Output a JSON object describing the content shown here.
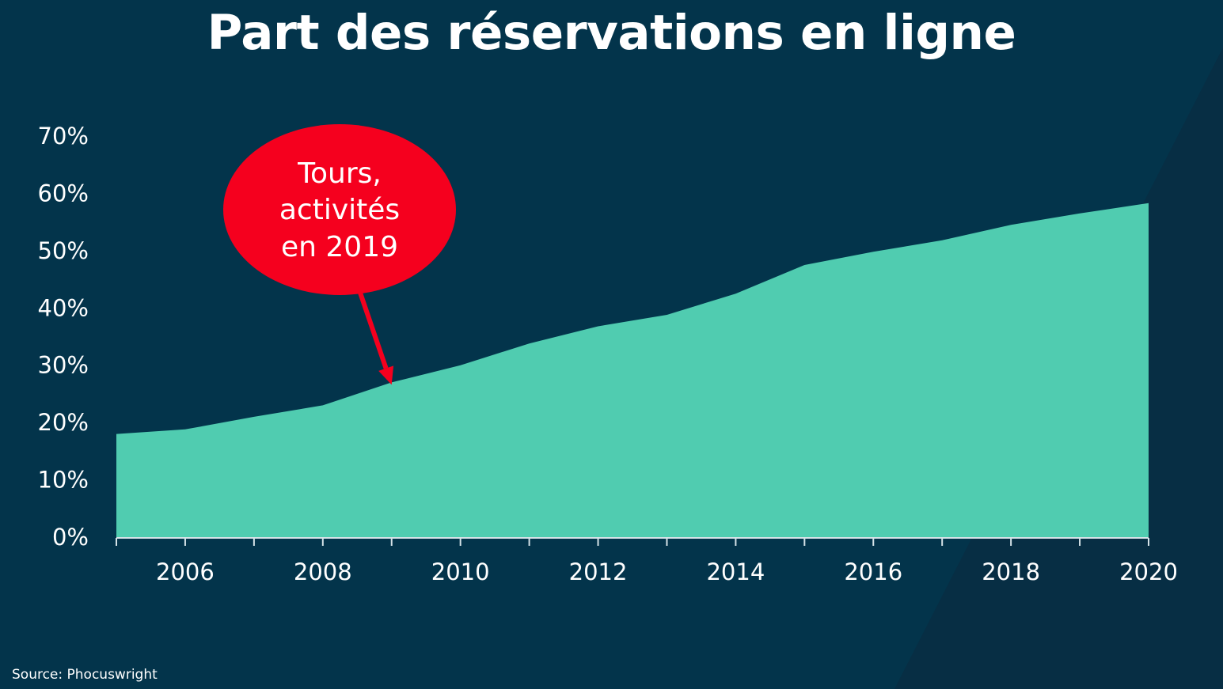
{
  "colors": {
    "background": "#03344b",
    "background_shade": "#072e44",
    "area_fill": "#50ccb0",
    "callout_fill": "#f5001e",
    "text": "#ffffff",
    "axis": "#d6e3e8"
  },
  "chart_data": {
    "type": "area",
    "title": "Part des réservations en ligne",
    "xlabel": "",
    "ylabel": "",
    "x": [
      2005,
      2006,
      2007,
      2008,
      2009,
      2010,
      2011,
      2012,
      2013,
      2014,
      2015,
      2016,
      2017,
      2018,
      2019,
      2020
    ],
    "values": [
      18,
      18.8,
      21,
      23,
      27,
      30,
      33.8,
      36.8,
      38.8,
      42.5,
      47.5,
      49.8,
      51.8,
      54.5,
      56.5,
      58.3
    ],
    "xlim": [
      2005,
      2020
    ],
    "ylim": [
      0,
      70
    ],
    "yticks": [
      0,
      10,
      20,
      30,
      40,
      50,
      60,
      70
    ],
    "ytick_labels": [
      "0%",
      "10%",
      "20%",
      "30%",
      "40%",
      "50%",
      "60%",
      "70%"
    ],
    "xticks_major": [
      2006,
      2008,
      2010,
      2012,
      2014,
      2016,
      2018,
      2020
    ],
    "xtick_labels": [
      "2006",
      "2008",
      "2010",
      "2012",
      "2014",
      "2016",
      "2018",
      "2020"
    ],
    "grid": false,
    "annotation": {
      "lines": [
        "Tours,",
        "activités",
        "en 2019"
      ],
      "points_to_x": 2009,
      "points_to_y": 27
    }
  },
  "source": "Source: Phocuswright"
}
